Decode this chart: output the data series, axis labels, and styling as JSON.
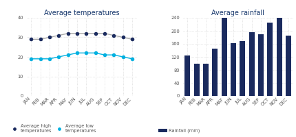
{
  "months": [
    "JAN",
    "FEB",
    "MAR",
    "APR",
    "MAY",
    "JUN",
    "JUL",
    "AUG",
    "SEP",
    "OCT",
    "NOV",
    "DEC"
  ],
  "avg_high": [
    29,
    29,
    30,
    31,
    32,
    32,
    32,
    32,
    32,
    31,
    30,
    29
  ],
  "avg_low": [
    19,
    19,
    19,
    20,
    21,
    22,
    22,
    22,
    21,
    21,
    20,
    19
  ],
  "rainfall": [
    125,
    100,
    100,
    145,
    240,
    163,
    168,
    195,
    190,
    225,
    240,
    185
  ],
  "high_color": "#1a2a5e",
  "low_color": "#00b0e0",
  "bar_color": "#1a2a5e",
  "line_color_high": "#aaaaaa",
  "title_temp": "Average temperatures",
  "title_rain": "Average rainfall",
  "legend_high": "Average high\ntemperatures",
  "legend_low": "Average low\ntemperatures",
  "legend_rain": "Rainfall (mm)",
  "temp_ylim": [
    0,
    40
  ],
  "temp_yticks": [
    0,
    10,
    20,
    30,
    40
  ],
  "rain_ylim": [
    0,
    240
  ],
  "rain_yticks": [
    0,
    40,
    80,
    120,
    160,
    200,
    240
  ],
  "title_color": "#1a3a6e",
  "tick_color": "#555555",
  "background_color": "#ffffff",
  "grid_color": "#cccccc"
}
